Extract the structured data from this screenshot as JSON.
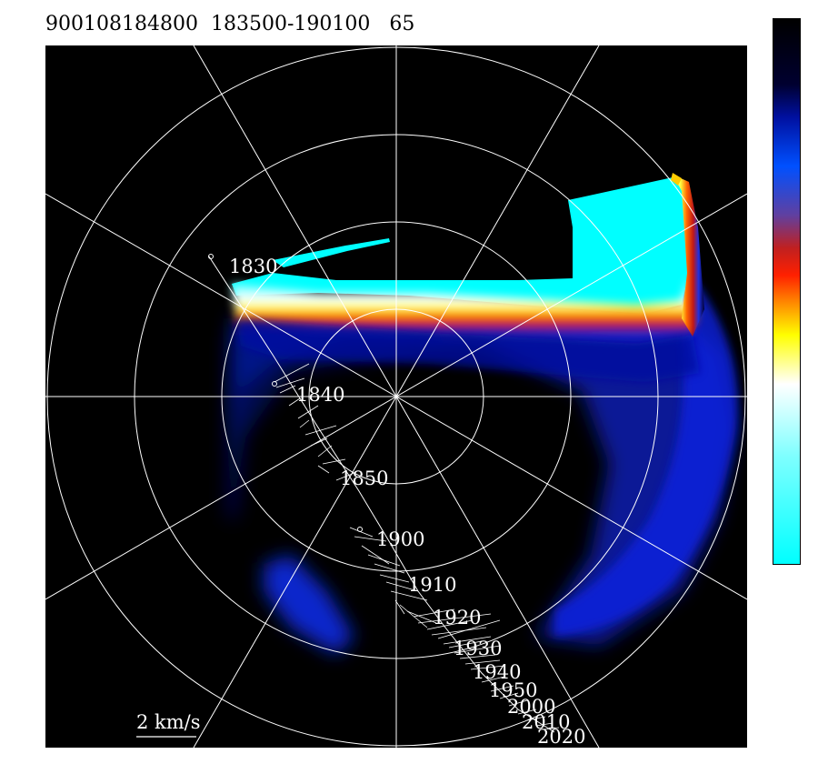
{
  "header": {
    "id": "900108184800",
    "time_range": "183500-190100",
    "value": "65"
  },
  "scale_label": "2 km/s",
  "colors": {
    "background": "#000000",
    "grid": "#ffffff",
    "colorbar_stops": [
      "#000000",
      "#000030",
      "#0010a0",
      "#0050ff",
      "#6040a0",
      "#c02020",
      "#ff2000",
      "#ff8800",
      "#ffff00",
      "#ffffff",
      "#80ffff",
      "#00ffff"
    ]
  },
  "chart_data": {
    "type": "polar-hodograph",
    "rings": 4,
    "spokes_deg": [
      0,
      30,
      60,
      90,
      120,
      150
    ],
    "track_labels": [
      "1830",
      "1840",
      "1850",
      "1900",
      "1910",
      "1920",
      "1930",
      "1940",
      "1950",
      "2000",
      "2010",
      "2020"
    ]
  }
}
